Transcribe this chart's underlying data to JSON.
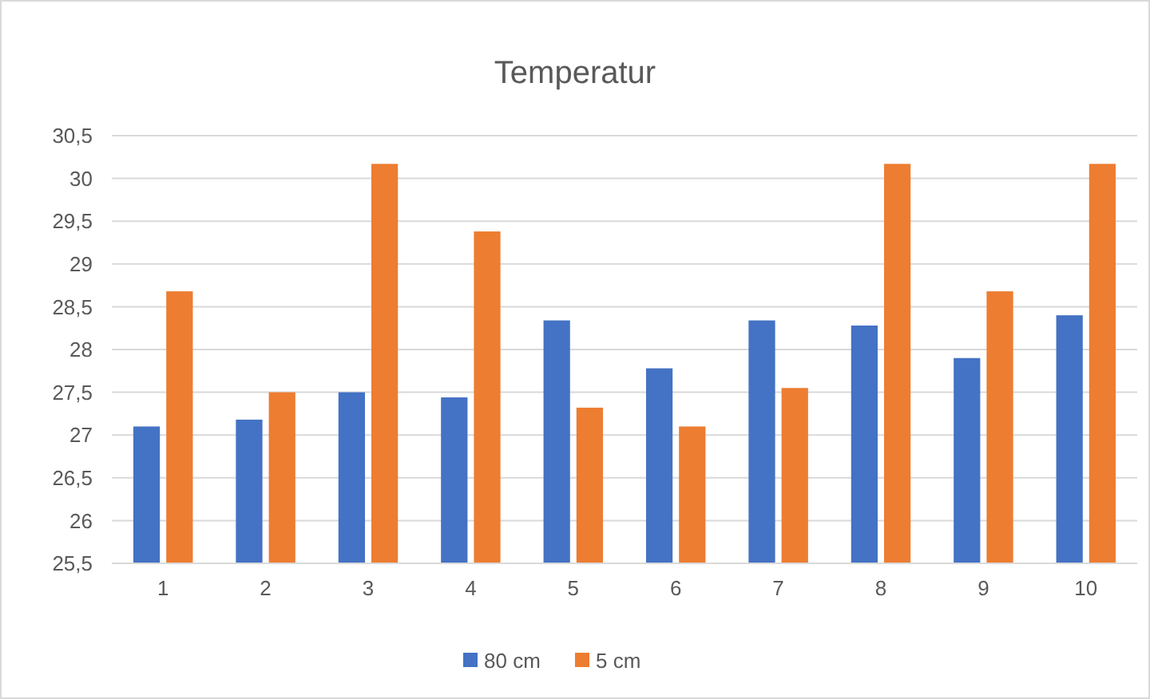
{
  "chart_data": {
    "type": "bar",
    "title": "Temperatur",
    "categories": [
      "1",
      "2",
      "3",
      "4",
      "5",
      "6",
      "7",
      "8",
      "9",
      "10"
    ],
    "series": [
      {
        "name": "80 cm",
        "color": "#4472c4",
        "values": [
          27.1,
          27.18,
          27.5,
          27.44,
          28.34,
          27.78,
          28.34,
          28.28,
          27.9,
          28.4
        ]
      },
      {
        "name": "5 cm",
        "color": "#ed7d31",
        "values": [
          28.68,
          27.5,
          30.17,
          29.38,
          27.32,
          27.1,
          27.55,
          30.17,
          28.68,
          30.17
        ]
      }
    ],
    "ylim": [
      25.5,
      30.5
    ],
    "yticks": [
      {
        "value": 25.5,
        "label": "25,5"
      },
      26,
      {
        "value": 26.5,
        "label": "26,5"
      },
      27,
      {
        "value": 27.5,
        "label": "27,5"
      },
      28,
      {
        "value": 28.5,
        "label": "28,5"
      },
      29,
      {
        "value": 29.5,
        "label": "29,5"
      },
      30,
      {
        "value": 30.5,
        "label": "30,5"
      }
    ],
    "grid": "y",
    "legend": "bottom"
  }
}
